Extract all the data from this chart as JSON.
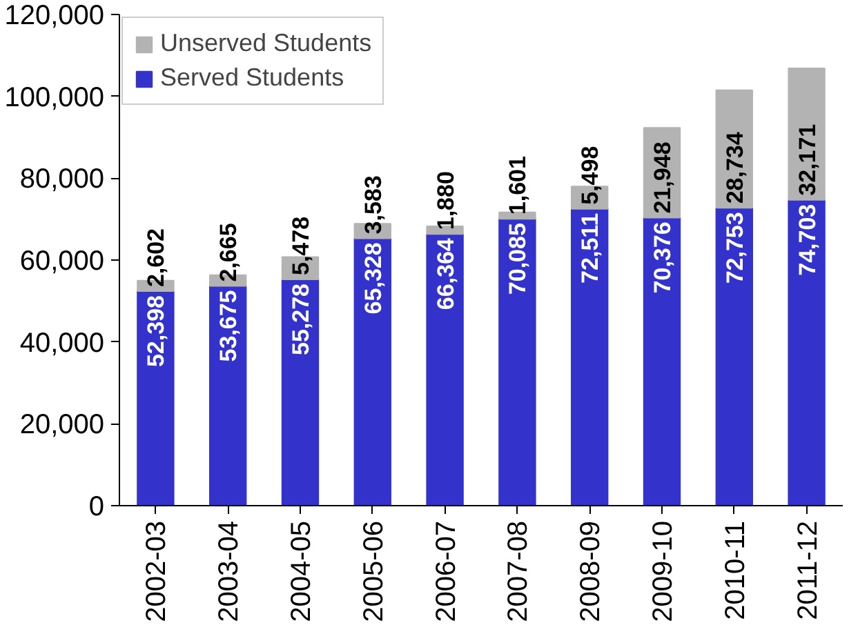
{
  "chart_data": {
    "type": "bar",
    "stacked": true,
    "legend": "top left",
    "categories": [
      "2002-03",
      "2003-04",
      "2004-05",
      "2005-06",
      "2006-07",
      "2007-08",
      "2008-09",
      "2009-10",
      "2010-11",
      "2011-12"
    ],
    "ylim": [
      0,
      120000
    ],
    "yticks": [
      {
        "value": 0,
        "label": "0"
      },
      {
        "value": 20000,
        "label": "20,000"
      },
      {
        "value": 40000,
        "label": "40,000"
      },
      {
        "value": 60000,
        "label": "60,000"
      },
      {
        "value": 80000,
        "label": "80,000"
      },
      {
        "value": 100000,
        "label": "100,000"
      },
      {
        "value": 120000,
        "label": "120,000"
      }
    ],
    "series": [
      {
        "name": "Served Students",
        "color": "#3333cc",
        "values": [
          52398,
          53675,
          55278,
          65328,
          66364,
          70085,
          72511,
          70376,
          72753,
          74703
        ],
        "value_labels": [
          "52,398",
          "53,675",
          "55,278",
          "65,328",
          "66,364",
          "70,085",
          "72,511",
          "70,376",
          "72,753",
          "74,703"
        ]
      },
      {
        "name": "Unserved Students",
        "color": "#b3b3b3",
        "values": [
          2602,
          2665,
          5478,
          3583,
          1880,
          1601,
          5498,
          21948,
          28734,
          32171
        ],
        "value_labels": [
          "2,602",
          "2,665",
          "5,478",
          "3,583",
          "1,880",
          "1,601",
          "5,498",
          "21,948",
          "28,734",
          "32,171"
        ]
      }
    ]
  }
}
